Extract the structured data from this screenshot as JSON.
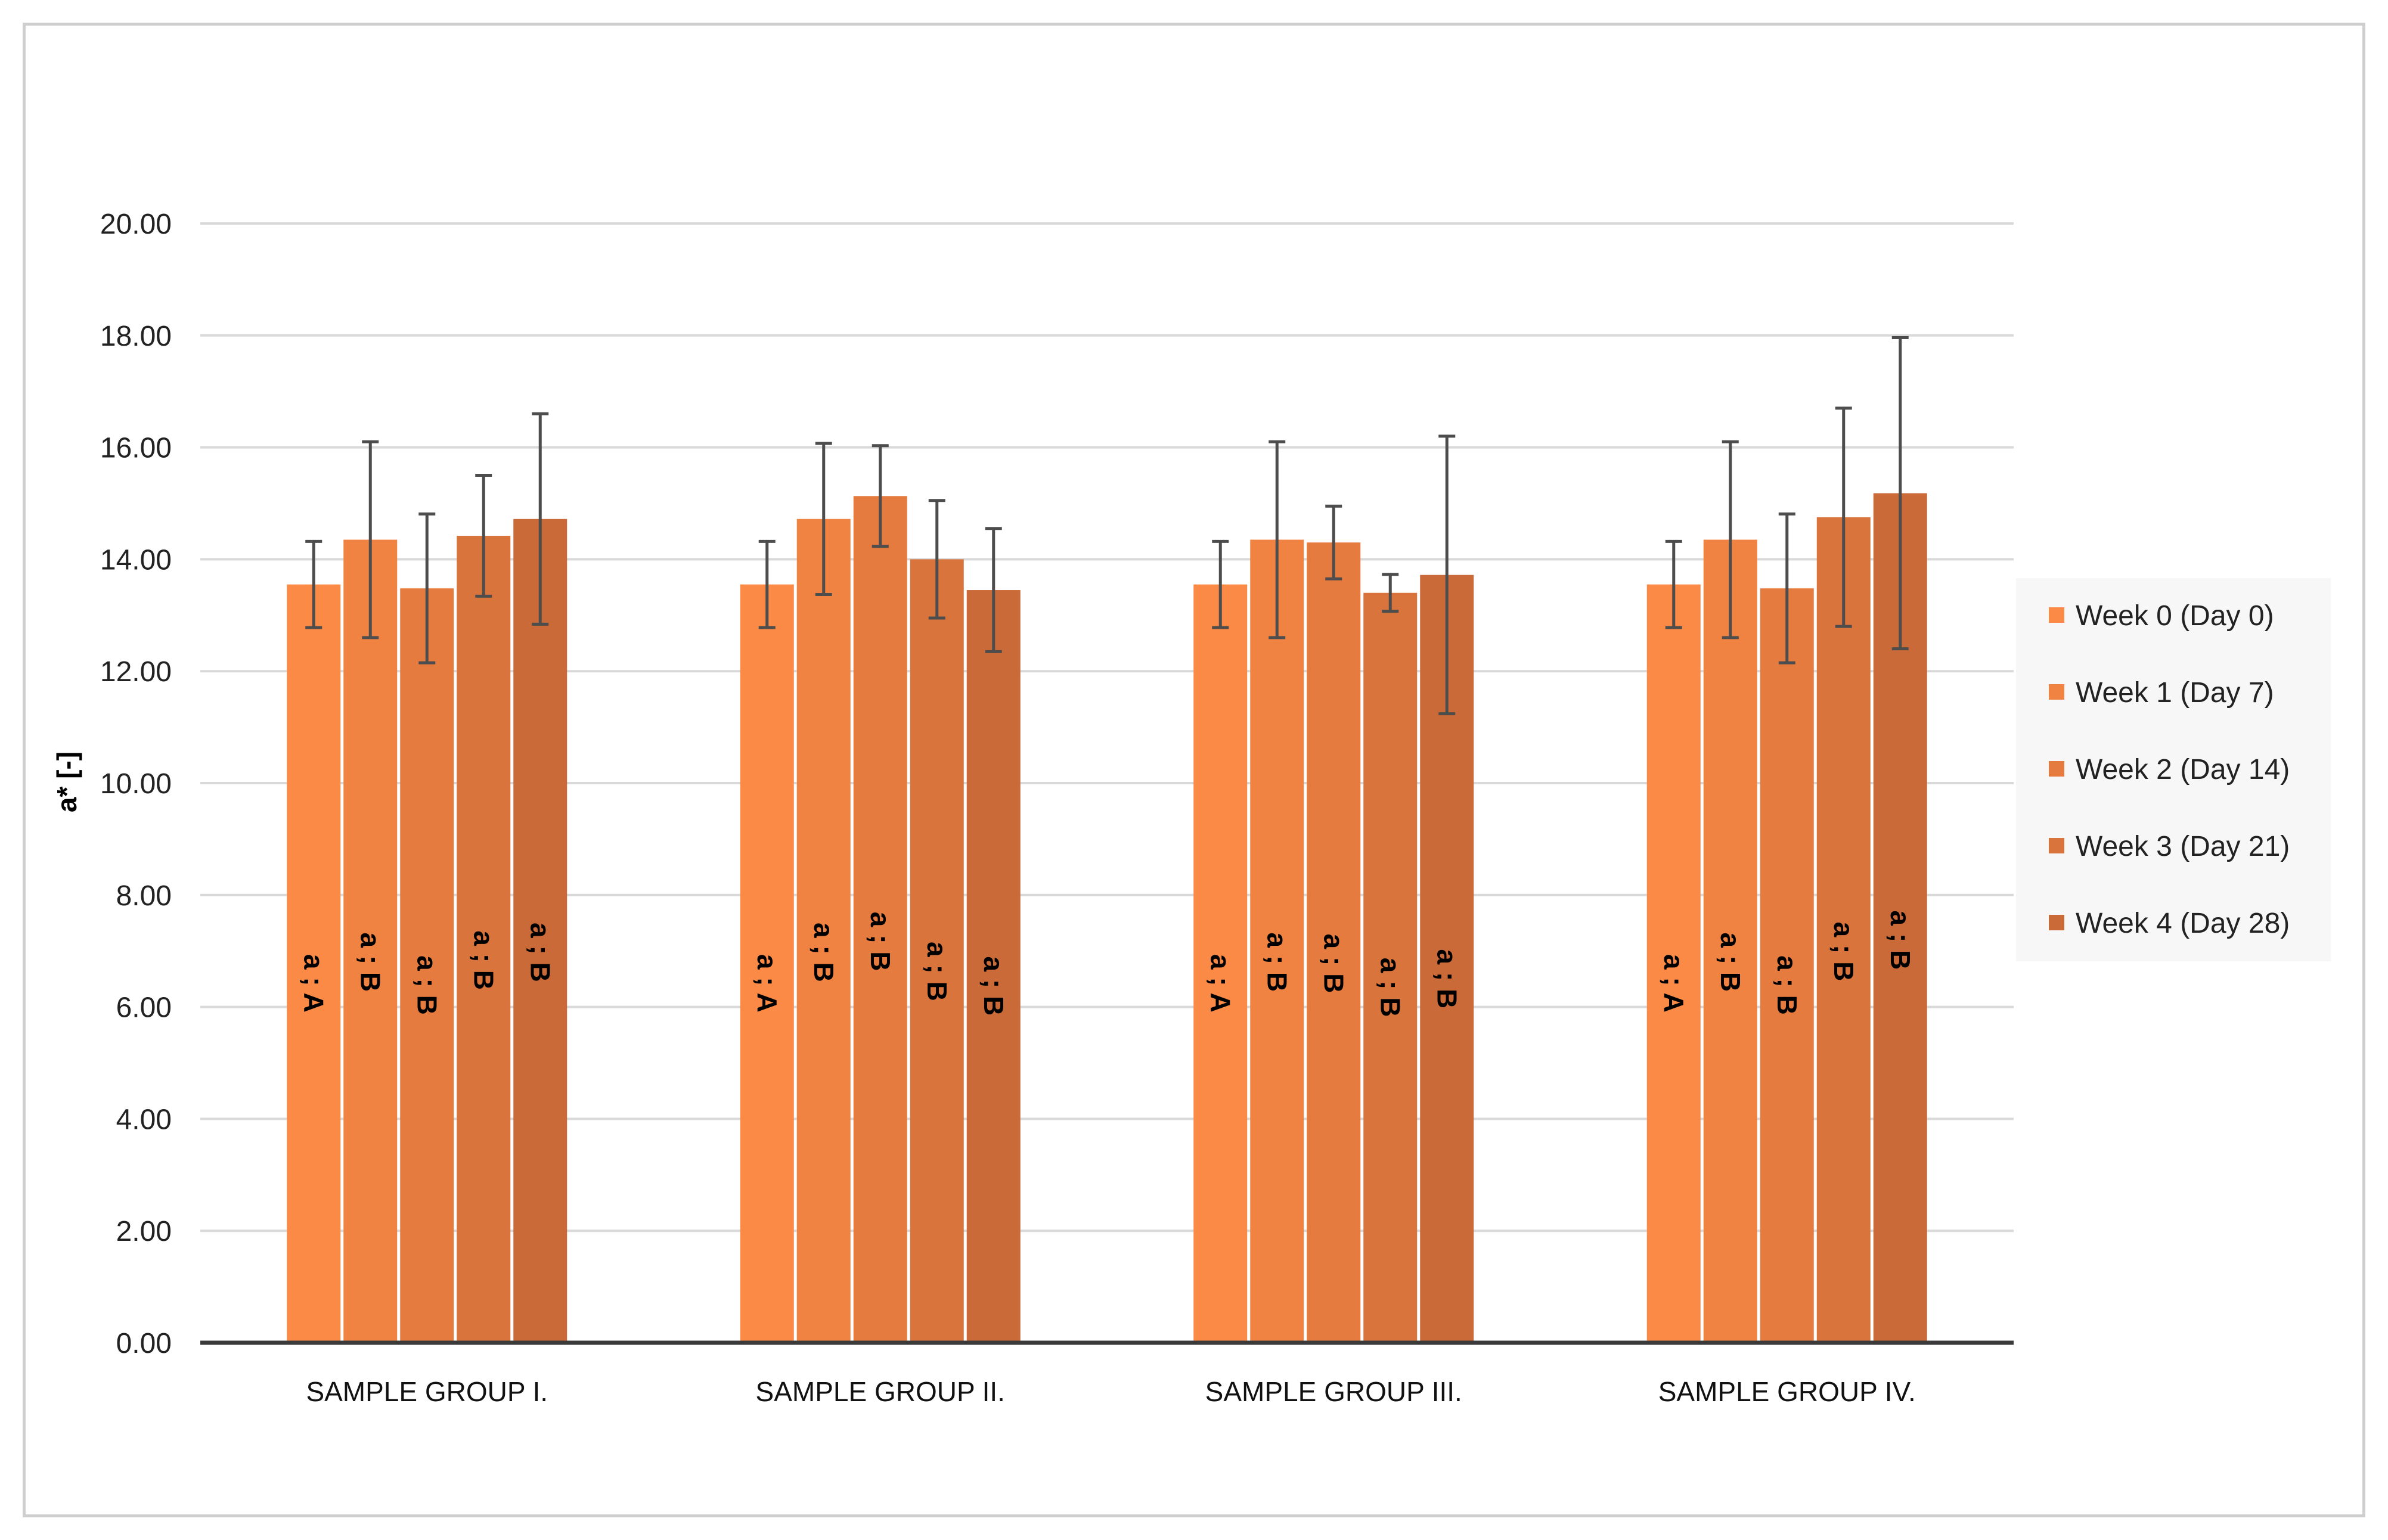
{
  "chart_data": {
    "type": "bar",
    "title": "",
    "xlabel": "",
    "ylabel": "a* [-]",
    "ylim": [
      0,
      20
    ],
    "yticks": [
      "0.00",
      "2.00",
      "4.00",
      "6.00",
      "8.00",
      "10.00",
      "12.00",
      "14.00",
      "16.00",
      "18.00",
      "20.00"
    ],
    "grid": true,
    "legend_position": "right",
    "categories": [
      "SAMPLE GROUP I.",
      "SAMPLE GROUP II.",
      "SAMPLE GROUP III.",
      "SAMPLE GROUP IV."
    ],
    "series": [
      {
        "name": "Week 0 (Day 0)",
        "color": "#FA8A45",
        "values": [
          13.55,
          13.55,
          13.55,
          13.55
        ],
        "errors": [
          0.77,
          0.77,
          0.77,
          0.77
        ],
        "labels": [
          "a ; A",
          "a ; A",
          "a ; A",
          "a ; A"
        ]
      },
      {
        "name": "Week 1 (Day 7)",
        "color": "#F08342",
        "values": [
          14.35,
          14.72,
          14.35,
          14.35
        ],
        "errors": [
          1.75,
          1.35,
          1.75,
          1.75
        ],
        "labels": [
          "a ; B",
          "a ; B",
          "a ; B",
          "a ; B"
        ]
      },
      {
        "name": "Week 2 (Day 14)",
        "color": "#E67B3F",
        "values": [
          13.48,
          15.13,
          14.3,
          13.48
        ],
        "errors": [
          1.33,
          0.9,
          0.65,
          1.33
        ],
        "labels": [
          "a ; B",
          "a ; B",
          "a ; B",
          "a ; B"
        ]
      },
      {
        "name": "Week 3 (Day 21)",
        "color": "#D9743C",
        "values": [
          14.42,
          14.0,
          13.4,
          14.75
        ],
        "errors": [
          1.08,
          1.05,
          0.33,
          1.95
        ],
        "labels": [
          "a ; B",
          "a ; B",
          "a ; B",
          "a ; B"
        ]
      },
      {
        "name": "Week 4 (Day 28)",
        "color": "#C96A38",
        "values": [
          14.72,
          13.45,
          13.72,
          15.18
        ],
        "errors": [
          1.88,
          1.1,
          2.48,
          2.78
        ],
        "labels": [
          "a ; B",
          "a ; B",
          "a ; B",
          "a ; B"
        ]
      }
    ]
  }
}
